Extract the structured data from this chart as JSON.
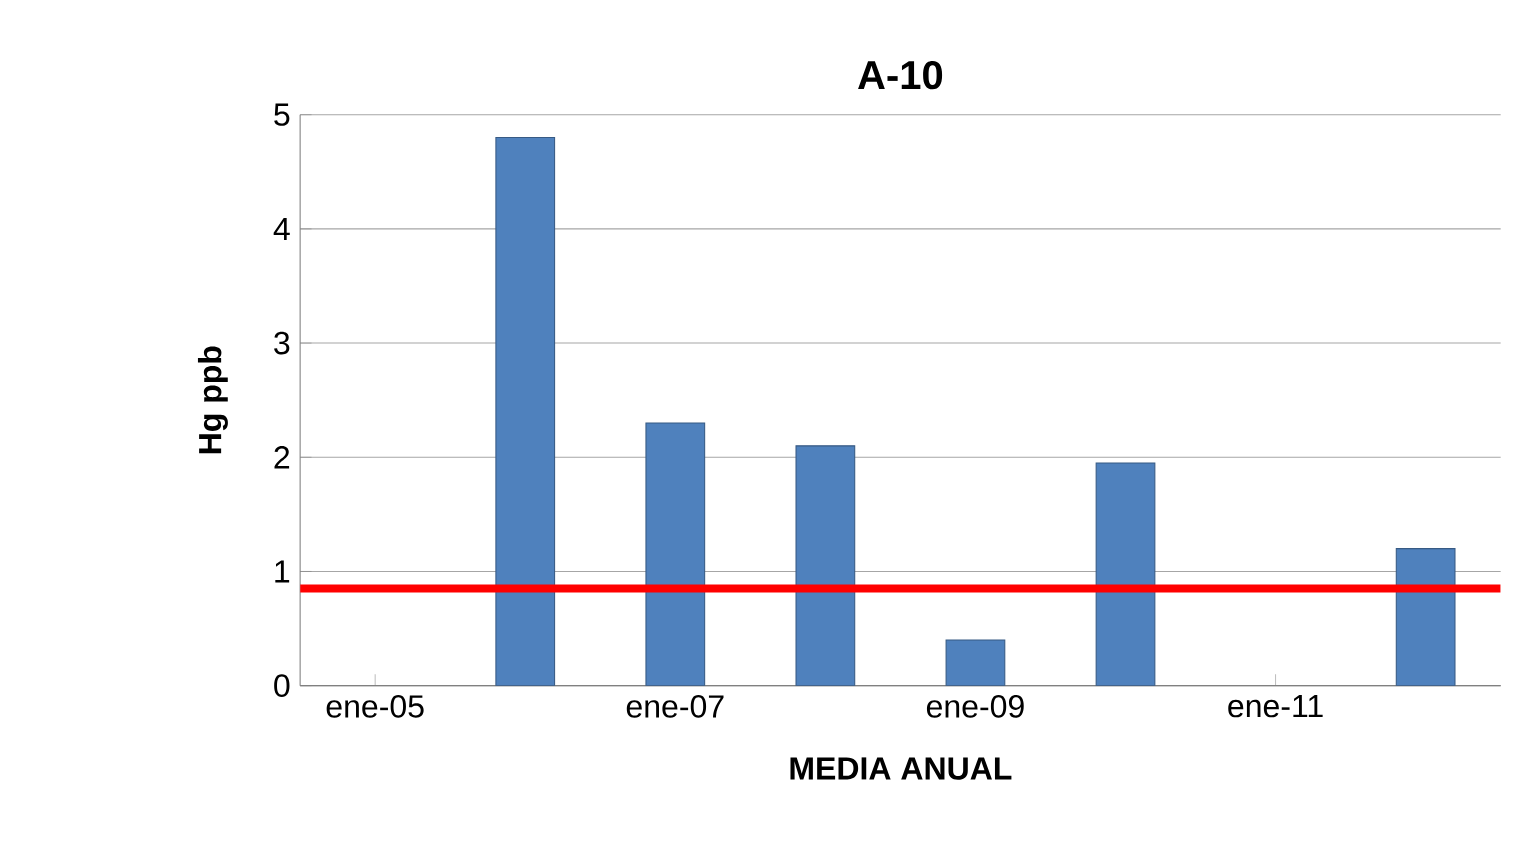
{
  "chart_data": {
    "type": "bar",
    "title": "A-10",
    "xlabel": "MEDIA ANUAL",
    "ylabel": "Hg ppb",
    "categories": [
      "ene-05",
      null,
      "ene-07",
      null,
      "ene-09",
      null,
      "ene-11",
      null
    ],
    "values": [
      null,
      4.8,
      2.3,
      2.1,
      0.4,
      1.95,
      null,
      1.2
    ],
    "color": "#4f81bd",
    "ylim": [
      0,
      5
    ],
    "yticks": [
      0,
      1,
      2,
      3,
      4,
      5
    ],
    "grid": "y",
    "ref_lines": [
      {
        "axis": "y",
        "value": 0.85,
        "color": "#ff0000"
      }
    ]
  }
}
